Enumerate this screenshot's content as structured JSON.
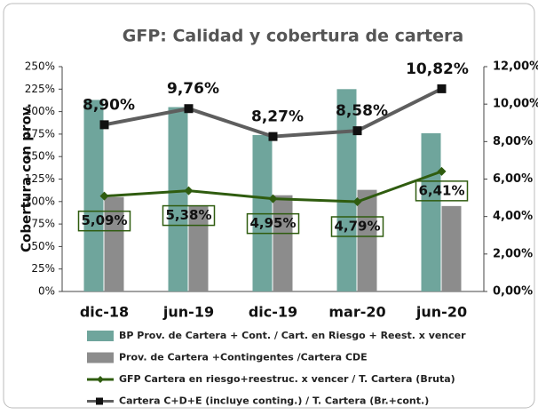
{
  "chart_data": {
    "type": "bar_line",
    "title": "GFP: Calidad y cobertura de cartera",
    "ylabel": "Cobertura con prov.",
    "categories": [
      "dic-18",
      "jun-19",
      "dic-19",
      "mar-20",
      "jun-20"
    ],
    "ylim": [
      0,
      250
    ],
    "yticks": [
      {
        "value": 0,
        "label": "0%"
      },
      {
        "value": 25,
        "label": "25%"
      },
      {
        "value": 50,
        "label": "50%"
      },
      {
        "value": 75,
        "label": "75%"
      },
      {
        "value": 100,
        "label": "100%"
      },
      {
        "value": 125,
        "label": "125%"
      },
      {
        "value": 150,
        "label": "150%"
      },
      {
        "value": 175,
        "label": "175%"
      },
      {
        "value": 200,
        "label": "200%"
      },
      {
        "value": 225,
        "label": "225%"
      },
      {
        "value": 250,
        "label": "250%"
      }
    ],
    "y2lim": [
      0,
      12
    ],
    "y2ticks": [
      {
        "value": 0,
        "label": "0,00%"
      },
      {
        "value": 2,
        "label": "2,00%"
      },
      {
        "value": 4,
        "label": "4,00%"
      },
      {
        "value": 6,
        "label": "6,00%"
      },
      {
        "value": 8,
        "label": "8,00%"
      },
      {
        "value": 10,
        "label": "10,00%"
      },
      {
        "value": 12,
        "label": "12,00%"
      }
    ],
    "series": [
      {
        "name": "BP Prov. de Cartera + Cont. / Cart. en Riesgo + Reest. x vencer",
        "type": "bar",
        "color": "#6fa59c",
        "values": [
          213,
          205,
          174,
          225,
          176
        ]
      },
      {
        "name": "Prov. de Cartera +Contingentes /Cartera CDE",
        "type": "bar",
        "color": "#8c8c8c",
        "values": [
          105,
          95,
          107,
          113,
          95
        ]
      },
      {
        "name": "GFP Cartera en riesgo+reestruc. x vencer / T. Cartera (Bruta)",
        "type": "line",
        "axis": "y2",
        "color": "#2f5c0f",
        "values": [
          5.09,
          5.38,
          4.95,
          4.79,
          6.41
        ],
        "value_labels": [
          "5,09%",
          "5,38%",
          "4,95%",
          "4,79%",
          "6,41%"
        ]
      },
      {
        "name": "Cartera C+D+E (incluye conting.) / T. Cartera  (Br.+cont.)",
        "type": "line",
        "axis": "y2",
        "color": "#5e5e5e",
        "values": [
          8.9,
          9.76,
          8.27,
          8.58,
          10.82
        ],
        "value_labels": [
          "8,90%",
          "9,76%",
          "8,27%",
          "8,58%",
          "10,82%"
        ]
      }
    ]
  }
}
